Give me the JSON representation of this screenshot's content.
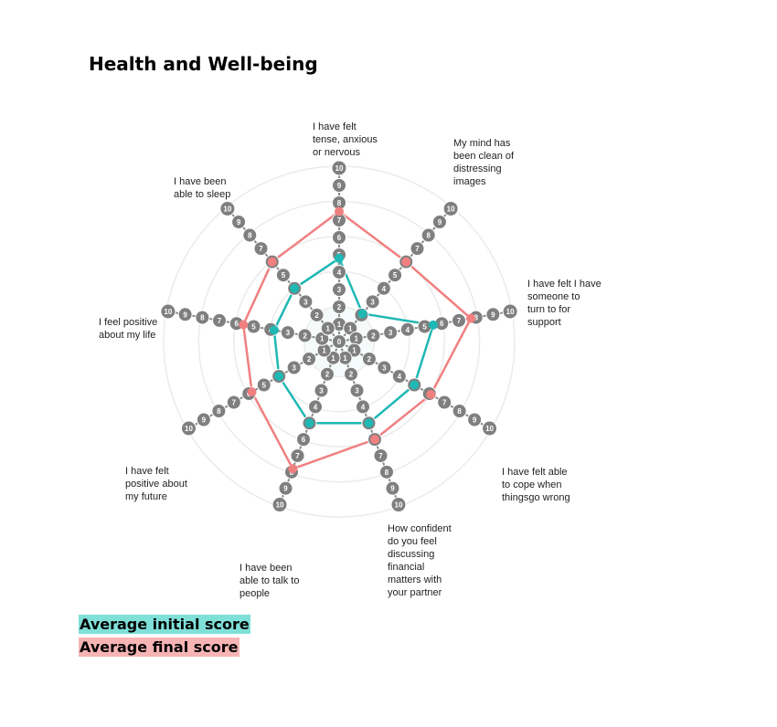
{
  "chart_data": {
    "type": "radar",
    "title": "Health and Well-being",
    "scale": {
      "min": 0,
      "max": 10,
      "ticks": [
        0,
        1,
        2,
        3,
        4,
        5,
        6,
        7,
        8,
        9,
        10
      ]
    },
    "axes": [
      "I have felt tense, anxious or nervous",
      "My mind has been clean of distressing images",
      "I have felt I have someone to turn to for support",
      "I have felt able to cope when thingsgo wrong",
      "How confident do you feel discussing financial matters with your partner",
      "I have been able to talk to people",
      "I have felt positive about my future",
      "I feel positive about my life",
      "I have been able to sleep"
    ],
    "axis_label_lines": [
      [
        "I have felt",
        "tense, anxious",
        "or nervous"
      ],
      [
        "My mind has",
        "been clean of",
        "distressing",
        "images"
      ],
      [
        "I have felt I have",
        "someone to",
        "turn to for",
        "support"
      ],
      [
        "I have felt able",
        "to cope when",
        "thingsgo wrong"
      ],
      [
        "How confident",
        "do you feel",
        "discussing",
        "financial",
        "matters with",
        "your partner"
      ],
      [
        "I have been",
        "able to talk to",
        "people"
      ],
      [
        "I have felt",
        "positive about",
        "my future"
      ],
      [
        "I feel positive",
        "about my life"
      ],
      [
        "I have been",
        "able to sleep"
      ]
    ],
    "series": [
      {
        "name": "Average initial score",
        "color": "#1fb8b4",
        "values": [
          4.8,
          2.1,
          5.5,
          5.0,
          5.0,
          5.0,
          4.0,
          3.8,
          4.0
        ]
      },
      {
        "name": "Average final score",
        "color": "#f08080",
        "values": [
          7.5,
          6.0,
          7.7,
          6.1,
          6.0,
          7.8,
          5.8,
          5.6,
          6.0
        ]
      }
    ]
  },
  "legend": {
    "initial_label": "Average initial score",
    "final_label": "Average final score"
  }
}
